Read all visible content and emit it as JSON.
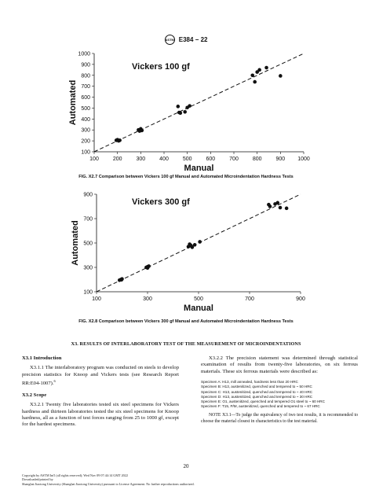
{
  "header": {
    "logo_text": "ASTM",
    "designation": "E384 − 22"
  },
  "chart_data": [
    {
      "type": "scatter",
      "title": "Vickers 100 gf",
      "xlabel": "Manual",
      "ylabel": "Automated",
      "xlim": [
        100,
        1000
      ],
      "ylim": [
        100,
        1000
      ],
      "xticks": [
        "100",
        "200",
        "300",
        "400",
        "500",
        "600",
        "700",
        "800",
        "900",
        "1000"
      ],
      "yticks": [
        "100",
        "200",
        "300",
        "400",
        "500",
        "600",
        "700",
        "800",
        "900",
        "1000"
      ],
      "reference_line": "dashed y = x",
      "points": [
        [
          195,
          205
        ],
        [
          200,
          210
        ],
        [
          210,
          205
        ],
        [
          205,
          200
        ],
        [
          290,
          300
        ],
        [
          300,
          310
        ],
        [
          305,
          295
        ],
        [
          295,
          290
        ],
        [
          460,
          515
        ],
        [
          465,
          460
        ],
        [
          470,
          455
        ],
        [
          490,
          465
        ],
        [
          500,
          505
        ],
        [
          510,
          520
        ],
        [
          780,
          800
        ],
        [
          790,
          740
        ],
        [
          800,
          830
        ],
        [
          810,
          850
        ],
        [
          840,
          870
        ],
        [
          900,
          795
        ]
      ]
    },
    {
      "type": "scatter",
      "title": "Vickers 300 gf",
      "xlabel": "Manual",
      "ylabel": "Automated",
      "xlim": [
        100,
        900
      ],
      "ylim": [
        100,
        900
      ],
      "xticks": [
        "100",
        "300",
        "500",
        "700",
        "900"
      ],
      "yticks": [
        "100",
        "300",
        "500",
        "700",
        "900"
      ],
      "reference_line": "dashed y = x",
      "points": [
        [
          190,
          195
        ],
        [
          195,
          200
        ],
        [
          200,
          205
        ],
        [
          198,
          198
        ],
        [
          295,
          300
        ],
        [
          300,
          305
        ],
        [
          305,
          310
        ],
        [
          300,
          295
        ],
        [
          460,
          470
        ],
        [
          465,
          490
        ],
        [
          470,
          480
        ],
        [
          475,
          465
        ],
        [
          485,
          485
        ],
        [
          505,
          510
        ],
        [
          775,
          815
        ],
        [
          780,
          800
        ],
        [
          800,
          820
        ],
        [
          810,
          830
        ],
        [
          820,
          790
        ],
        [
          845,
          785
        ]
      ]
    }
  ],
  "captions": {
    "fig_x27": "FIG. X2.7 Comparison between Vickers 100 gf Manual and Automated Microindentation Hardness Tests",
    "fig_x28": "FIG. X2.8 Comparison between Vickers 300 gf Manual and Automated Microindentation Hardness Tests"
  },
  "section": {
    "heading": "X3.  RESULTS OF INTERLABORATORY TEST OF THE MEASUREMENT OF MICROINDENTATIONS"
  },
  "left_col": {
    "x31_heading": "X3.1 Introduction",
    "x311": "X3.1.1 The interlaboratory program was conducted on steels to develop precision statistics for Knoop and Vickers tests (see Research Report RR:E04-1007).",
    "x311_sup": "6",
    "x32_heading": "X3.2 Scope",
    "x321": "X3.2.1 Twenty five laboratories tested six steel specimens for Vickers hardness and thirteen laboratories tested the six steel specimens for Knoop hardness, all as a function of test forces ranging from 25 to 1000 gf, except for the hardest specimens."
  },
  "right_col": {
    "x322": "X3.2.2 The precision statement was determined through statistical examination of results from twenty-five laboratories, on six ferrous materials. These six ferrous materials were described as:",
    "specimens": [
      "Specimen A:  H13, mill annealed, hardness less than 20 HRC",
      "Specimen B:  H13, austenitized, quenched and tempered to ~ 50 HRC",
      "Specimen C:  H13, austenitized, quenched and tempered to ~ 40 HRC",
      "Specimen D:  H13, austenitized, quenched and tempered to ~ 30 HRC",
      "Specimen E:  O1, austenitized, quenched and tempered O1 steel to ~ 60 HRC",
      "Specimen F:  T15, P/M, austenitized, quenched and tempered to ~ 67 HRC"
    ],
    "note": "NOTE X3.1—To judge the equivalency of two test results, it is recommended to choose the material closest in characteristics to the test material."
  },
  "page_number": "20",
  "footer": [
    "Copyright by ASTM Int'l (all rights reserved); Wed Nov 09 07:44:14 GMT 2022",
    "Downloaded/printed by",
    "Shanghai Jiaotong University (Shanghai Jiaotong University) pursuant to License Agreement. No further reproductions authorized."
  ]
}
